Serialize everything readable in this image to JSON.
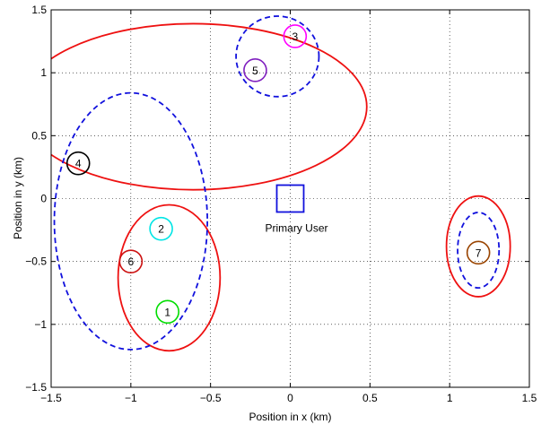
{
  "chart_data": {
    "type": "scatter",
    "xlabel": "Position in x (km)",
    "ylabel": "Position in y (km)",
    "xlim": [
      -1.5,
      1.5
    ],
    "ylim": [
      -1.5,
      1.5
    ],
    "xticks": [
      -1.5,
      -1,
      -0.5,
      0,
      0.5,
      1,
      1.5
    ],
    "yticks": [
      -1.5,
      -1,
      -0.5,
      0,
      0.5,
      1,
      1.5
    ],
    "grid": true,
    "primary_user": {
      "label": "Primary User",
      "x": 0,
      "y": 0
    },
    "nodes": [
      {
        "id": "1",
        "x": -0.77,
        "y": -0.9,
        "color": "#00dd00"
      },
      {
        "id": "2",
        "x": -0.81,
        "y": -0.24,
        "color": "#00e5e5"
      },
      {
        "id": "3",
        "x": 0.03,
        "y": 1.29,
        "color": "#ff00ff"
      },
      {
        "id": "4",
        "x": -1.33,
        "y": 0.28,
        "color": "#000000"
      },
      {
        "id": "5",
        "x": -0.22,
        "y": 1.02,
        "color": "#7f1fbf"
      },
      {
        "id": "6",
        "x": -1.0,
        "y": -0.5,
        "color": "#cc1111"
      },
      {
        "id": "7",
        "x": 1.18,
        "y": -0.43,
        "color": "#994400"
      }
    ],
    "ellipses": [
      {
        "cx": -0.61,
        "cy": 0.73,
        "rx": 1.09,
        "ry": 0.66,
        "style": "solid",
        "color": "#ee1111"
      },
      {
        "cx": -0.76,
        "cy": -0.63,
        "rx": 0.32,
        "ry": 0.58,
        "style": "solid",
        "color": "#ee1111"
      },
      {
        "cx": 1.18,
        "cy": -0.38,
        "rx": 0.2,
        "ry": 0.4,
        "style": "solid",
        "color": "#ee1111"
      },
      {
        "cx": -1.0,
        "cy": -0.18,
        "rx": 0.48,
        "ry": 1.02,
        "style": "dashed",
        "color": "#1111dd"
      },
      {
        "cx": -0.08,
        "cy": 1.13,
        "rx": 0.26,
        "ry": 0.32,
        "style": "dashed",
        "color": "#1111dd"
      },
      {
        "cx": 1.18,
        "cy": -0.41,
        "rx": 0.13,
        "ry": 0.3,
        "style": "dashed",
        "color": "#1111dd"
      }
    ]
  }
}
